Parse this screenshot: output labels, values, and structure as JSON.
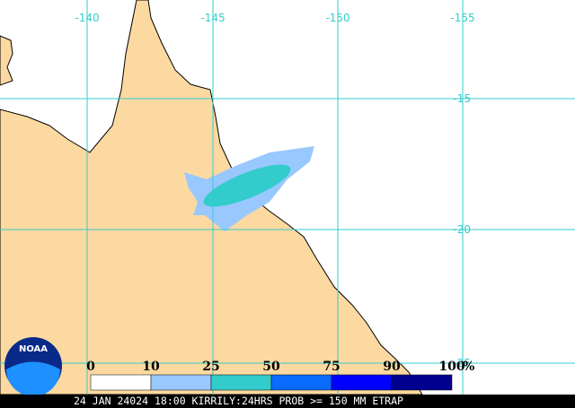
{
  "map": {
    "longitude_labels": [
      "-140",
      "-145",
      "-150",
      "-155"
    ],
    "latitude_labels": [
      "-15",
      "-20",
      "-25"
    ]
  },
  "legend": {
    "labels": [
      "0",
      "10",
      "25",
      "50",
      "75",
      "90",
      "100"
    ],
    "unit": "%",
    "colors": [
      "#ffffff",
      "#99c8ff",
      "#33cccc",
      "#0a6cff",
      "#0000ff",
      "#000090"
    ]
  },
  "logo": "NOAA",
  "footer": "24 JAN 24024 18:00 KIRRILY:24HRS PROB >= 150 MM ETRAP"
}
